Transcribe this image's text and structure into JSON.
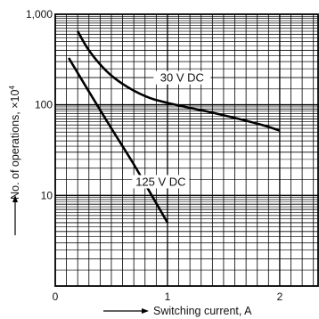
{
  "chart_data": {
    "type": "line",
    "title": "",
    "xlabel": "Switching current, A",
    "ylabel": "No. of operations, ×10",
    "ylabel_exponent": "4",
    "xlim": [
      0,
      2.35
    ],
    "ylim": [
      1,
      1000
    ],
    "yscale": "log",
    "grid": true,
    "x_ticks": [
      {
        "value": 0,
        "label": "0"
      },
      {
        "value": 1,
        "label": "1"
      },
      {
        "value": 2,
        "label": "2"
      }
    ],
    "y_ticks": [
      {
        "value": 10,
        "label": "10"
      },
      {
        "value": 100,
        "label": "100"
      },
      {
        "value": 1000,
        "label": "1,000"
      }
    ],
    "series": [
      {
        "name": "30 V DC",
        "points": [
          [
            0.2,
            650
          ],
          [
            0.3,
            400
          ],
          [
            0.45,
            240
          ],
          [
            0.6,
            170
          ],
          [
            0.8,
            125
          ],
          [
            1.0,
            105
          ],
          [
            1.4,
            82
          ],
          [
            1.8,
            62
          ],
          [
            2.0,
            52
          ]
        ]
      },
      {
        "name": "125 V DC",
        "points": [
          [
            0.12,
            330
          ],
          [
            0.3,
            140
          ],
          [
            0.5,
            55
          ],
          [
            0.7,
            22
          ],
          [
            0.85,
            10.5
          ],
          [
            1.0,
            5
          ]
        ]
      }
    ]
  }
}
